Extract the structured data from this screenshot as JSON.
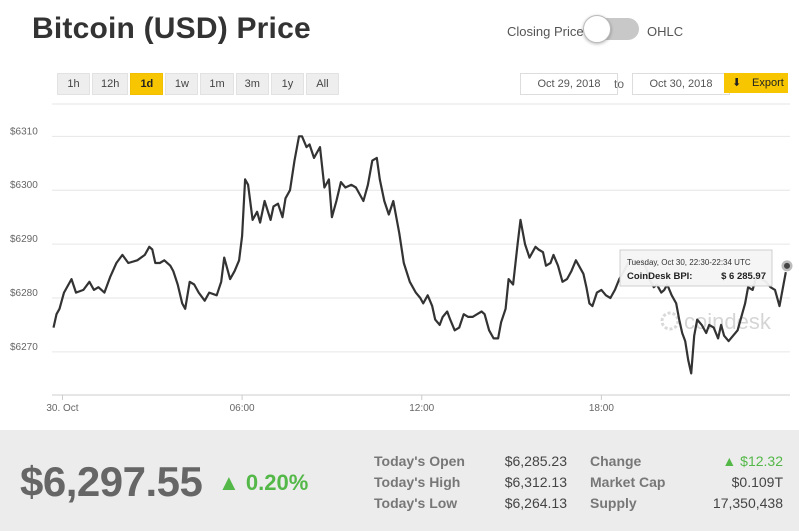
{
  "header": {
    "title": "Bitcoin (USD) Price"
  },
  "toggle": {
    "left_label": "Closing Price",
    "right_label": "OHLC"
  },
  "ranges": [
    {
      "label": "1h",
      "active": false
    },
    {
      "label": "12h",
      "active": false
    },
    {
      "label": "1d",
      "active": true
    },
    {
      "label": "1w",
      "active": false
    },
    {
      "label": "1m",
      "active": false
    },
    {
      "label": "3m",
      "active": false
    },
    {
      "label": "1y",
      "active": false
    },
    {
      "label": "All",
      "active": false
    }
  ],
  "date_range": {
    "from": "Oct 29, 2018",
    "to_label": "to",
    "to": "Oct 30, 2018"
  },
  "export": {
    "label": "Export"
  },
  "tooltip": {
    "time": "Tuesday, Oct 30, 22:30-22:34 UTC",
    "label": "CoinDesk BPI:",
    "value": "$ 6 285.97"
  },
  "watermark": "coindesk",
  "chart_data": {
    "type": "line",
    "series": [
      {
        "values": [
          [
            -0.3,
            6274.5
          ],
          [
            -0.2,
            6277
          ],
          [
            -0.1,
            6278
          ],
          [
            0.05,
            6281
          ],
          [
            0.3,
            6283.5
          ],
          [
            0.45,
            6281
          ],
          [
            0.7,
            6281.5
          ],
          [
            0.9,
            6283
          ],
          [
            1.05,
            6281.5
          ],
          [
            1.2,
            6282
          ],
          [
            1.4,
            6281
          ],
          [
            1.6,
            6284
          ],
          [
            1.8,
            6286.5
          ],
          [
            2.0,
            6288
          ],
          [
            2.2,
            6286.5
          ],
          [
            2.5,
            6287
          ],
          [
            2.75,
            6288
          ],
          [
            2.9,
            6289.5
          ],
          [
            3.0,
            6289
          ],
          [
            3.1,
            6286.5
          ],
          [
            3.25,
            6286.5
          ],
          [
            3.4,
            6287
          ],
          [
            3.6,
            6286
          ],
          [
            3.7,
            6285
          ],
          [
            3.85,
            6282.5
          ],
          [
            4.0,
            6279
          ],
          [
            4.1,
            6278
          ],
          [
            4.25,
            6283
          ],
          [
            4.4,
            6282.5
          ],
          [
            4.55,
            6281
          ],
          [
            4.75,
            6279.5
          ],
          [
            4.9,
            6281
          ],
          [
            5.15,
            6280.5
          ],
          [
            5.3,
            6283
          ],
          [
            5.4,
            6287.5
          ],
          [
            5.6,
            6283.5
          ],
          [
            5.75,
            6285
          ],
          [
            5.9,
            6287
          ],
          [
            6.0,
            6291.5
          ],
          [
            6.1,
            6302
          ],
          [
            6.2,
            6301
          ],
          [
            6.35,
            6294.5
          ],
          [
            6.5,
            6296
          ],
          [
            6.6,
            6294
          ],
          [
            6.75,
            6298
          ],
          [
            6.95,
            6294.5
          ],
          [
            7.05,
            6297
          ],
          [
            7.2,
            6297.5
          ],
          [
            7.35,
            6295
          ],
          [
            7.45,
            6298.5
          ],
          [
            7.6,
            6300
          ],
          [
            7.75,
            6305.5
          ],
          [
            7.9,
            6310
          ],
          [
            8.0,
            6310
          ],
          [
            8.15,
            6308
          ],
          [
            8.25,
            6308.5
          ],
          [
            8.4,
            6306
          ],
          [
            8.6,
            6308
          ],
          [
            8.75,
            6300.5
          ],
          [
            8.9,
            6302
          ],
          [
            9.0,
            6295
          ],
          [
            9.15,
            6298
          ],
          [
            9.3,
            6301.5
          ],
          [
            9.45,
            6300.5
          ],
          [
            9.65,
            6301
          ],
          [
            9.8,
            6300.5
          ],
          [
            9.9,
            6299.5
          ],
          [
            10.05,
            6298
          ],
          [
            10.2,
            6301
          ],
          [
            10.35,
            6305.5
          ],
          [
            10.5,
            6306
          ],
          [
            10.6,
            6302
          ],
          [
            10.75,
            6298
          ],
          [
            10.9,
            6295.5
          ],
          [
            11.05,
            6298
          ],
          [
            11.15,
            6295
          ],
          [
            11.25,
            6292
          ],
          [
            11.4,
            6286.5
          ],
          [
            11.6,
            6283
          ],
          [
            11.8,
            6281
          ],
          [
            11.95,
            6280
          ],
          [
            12.05,
            6279
          ],
          [
            12.2,
            6280.5
          ],
          [
            12.35,
            6278.5
          ],
          [
            12.45,
            6276
          ],
          [
            12.6,
            6275
          ],
          [
            12.7,
            6276.5
          ],
          [
            12.85,
            6277.5
          ],
          [
            12.95,
            6276
          ],
          [
            13.1,
            6274
          ],
          [
            13.25,
            6274.5
          ],
          [
            13.4,
            6277
          ],
          [
            13.55,
            6276.5
          ],
          [
            13.7,
            6276.5
          ],
          [
            13.85,
            6277
          ],
          [
            14.0,
            6277.5
          ],
          [
            14.1,
            6277
          ],
          [
            14.25,
            6274
          ],
          [
            14.4,
            6272.5
          ],
          [
            14.55,
            6272.5
          ],
          [
            14.65,
            6275.5
          ],
          [
            14.8,
            6278
          ],
          [
            14.9,
            6283.5
          ],
          [
            15.05,
            6282.5
          ],
          [
            15.2,
            6290
          ],
          [
            15.3,
            6294.5
          ],
          [
            15.45,
            6290
          ],
          [
            15.6,
            6287.5
          ],
          [
            15.8,
            6289.5
          ],
          [
            15.9,
            6289
          ],
          [
            16.05,
            6288.5
          ],
          [
            16.15,
            6286
          ],
          [
            16.3,
            6286.5
          ],
          [
            16.4,
            6288
          ],
          [
            16.55,
            6286
          ],
          [
            16.7,
            6283
          ],
          [
            16.85,
            6283.5
          ],
          [
            17.0,
            6285
          ],
          [
            17.15,
            6287
          ],
          [
            17.25,
            6286
          ],
          [
            17.4,
            6284.5
          ],
          [
            17.5,
            6282
          ],
          [
            17.6,
            6279
          ],
          [
            17.7,
            6278.5
          ],
          [
            17.85,
            6281
          ],
          [
            18.0,
            6281.5
          ],
          [
            18.15,
            6280.5
          ],
          [
            18.3,
            6280
          ],
          [
            18.45,
            6281.5
          ],
          [
            18.6,
            6283.5
          ],
          [
            18.75,
            6285
          ],
          [
            18.9,
            6286.5
          ],
          [
            19.05,
            6287
          ],
          [
            19.2,
            6286.5
          ],
          [
            19.35,
            6287
          ],
          [
            19.5,
            6285.5
          ],
          [
            19.6,
            6283.5
          ],
          [
            19.75,
            6282
          ],
          [
            19.85,
            6282.5
          ],
          [
            20.0,
            6281
          ],
          [
            20.1,
            6281.5
          ],
          [
            20.2,
            6282.5
          ],
          [
            20.35,
            6280.5
          ],
          [
            20.5,
            6279
          ],
          [
            20.6,
            6276
          ],
          [
            20.7,
            6273.5
          ],
          [
            20.8,
            6272
          ],
          [
            20.9,
            6268.5
          ],
          [
            21.0,
            6266
          ],
          [
            21.1,
            6273
          ],
          [
            21.2,
            6276
          ],
          [
            21.35,
            6275
          ],
          [
            21.5,
            6273.5
          ],
          [
            21.6,
            6275
          ],
          [
            21.75,
            6274.5
          ],
          [
            21.9,
            6272.5
          ],
          [
            22.0,
            6275
          ],
          [
            22.1,
            6273
          ],
          [
            22.25,
            6272
          ],
          [
            22.4,
            6273
          ],
          [
            22.55,
            6274
          ],
          [
            22.65,
            6276
          ],
          [
            22.8,
            6279
          ],
          [
            22.9,
            6282
          ],
          [
            23.05,
            6281.5
          ],
          [
            23.2,
            6284.5
          ],
          [
            23.35,
            6283.5
          ],
          [
            23.5,
            6283
          ],
          [
            23.65,
            6282
          ],
          [
            23.8,
            6281.5
          ],
          [
            23.95,
            6278.5
          ],
          [
            24.1,
            6283
          ],
          [
            24.2,
            6285.97
          ]
        ]
      }
    ],
    "xlim": [
      -0.35,
      24.3
    ],
    "ylim": [
      6262,
      6316
    ],
    "x_ticks": [
      {
        "value": 0,
        "label": "30. Oct"
      },
      {
        "value": 6,
        "label": "06:00"
      },
      {
        "value": 12,
        "label": "12:00"
      },
      {
        "value": 18,
        "label": "18:00"
      }
    ],
    "y_ticks": [
      {
        "value": 6270,
        "label": "$6270"
      },
      {
        "value": 6280,
        "label": "$6280"
      },
      {
        "value": 6290,
        "label": "$6290"
      },
      {
        "value": 6300,
        "label": "$6300"
      },
      {
        "value": 6310,
        "label": "$6310"
      }
    ],
    "grid": true,
    "line_color": "#333333"
  },
  "footer": {
    "price": "$6,297.55",
    "change_pct": "0.20%",
    "change_arrow": "▲",
    "stats": [
      {
        "label": "Today's Open",
        "value": "$6,285.23"
      },
      {
        "label": "Today's High",
        "value": "$6,312.13"
      },
      {
        "label": "Today's Low",
        "value": "$6,264.13"
      }
    ],
    "stats2": [
      {
        "label": "Change",
        "value": "▲ $12.32"
      },
      {
        "label": "Market Cap",
        "value": "$0.109T"
      },
      {
        "label": "Supply",
        "value": "17,350,438"
      }
    ],
    "accent": "#54b848"
  }
}
